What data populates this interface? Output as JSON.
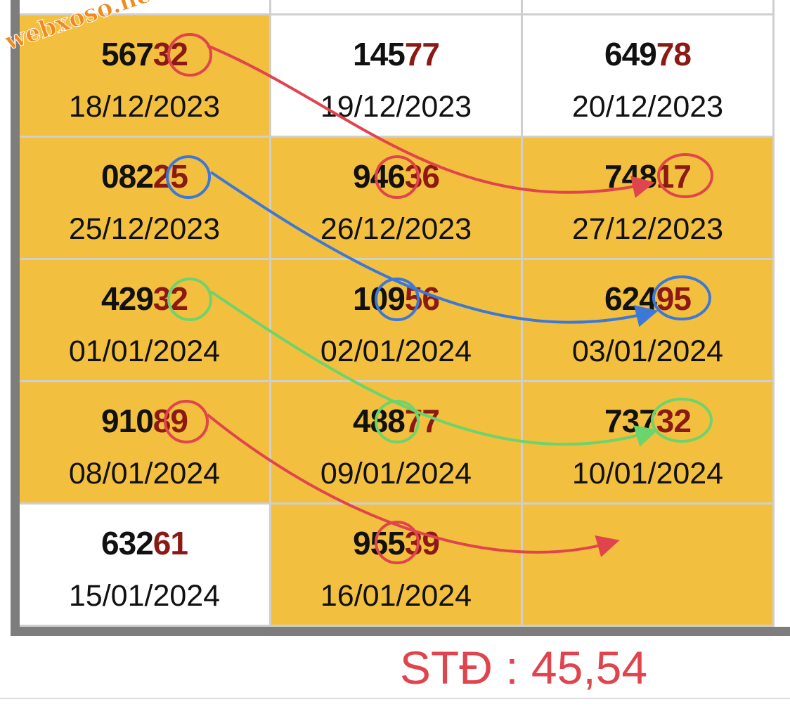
{
  "watermark": "webxoso.net",
  "table": {
    "rows": [
      [
        {
          "head": "567",
          "tail": "32",
          "date": "18/12/2023",
          "highlight": true
        },
        {
          "head": "145",
          "tail": "77",
          "date": "19/12/2023",
          "highlight": false
        },
        {
          "head": "649",
          "tail": "78",
          "date": "20/12/2023",
          "highlight": false
        }
      ],
      [
        {
          "head": "082",
          "tail": "25",
          "date": "25/12/2023",
          "highlight": true
        },
        {
          "head": "946",
          "tail": "36",
          "date": "26/12/2023",
          "highlight": true
        },
        {
          "head": "748",
          "tail": "17",
          "date": "27/12/2023",
          "highlight": true
        }
      ],
      [
        {
          "head": "429",
          "tail": "32",
          "date": "01/01/2024",
          "highlight": true
        },
        {
          "head": "109",
          "tail": "56",
          "date": "02/01/2024",
          "highlight": true
        },
        {
          "head": "624",
          "tail": "95",
          "date": "03/01/2024",
          "highlight": true
        }
      ],
      [
        {
          "head": "910",
          "tail": "89",
          "date": "08/01/2024",
          "highlight": true
        },
        {
          "head": "488",
          "tail": "77",
          "date": "09/01/2024",
          "highlight": true
        },
        {
          "head": "737",
          "tail": "32",
          "date": "10/01/2024",
          "highlight": true
        }
      ],
      [
        {
          "head": "632",
          "tail": "61",
          "date": "15/01/2024",
          "highlight": false
        },
        {
          "head": "955",
          "tail": "39",
          "date": "16/01/2024",
          "highlight": true
        }
      ]
    ]
  },
  "footer": "STĐ : 45,54"
}
